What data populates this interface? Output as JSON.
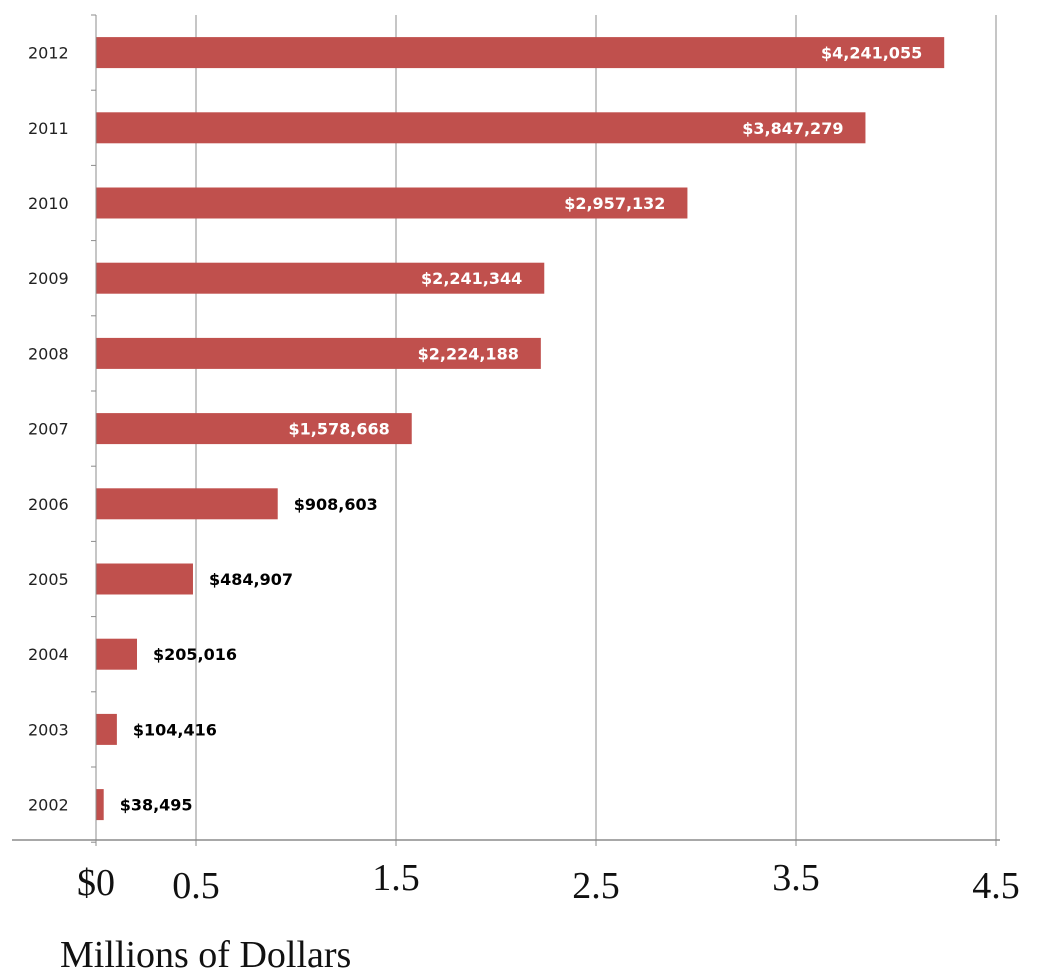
{
  "chart_data": {
    "type": "bar",
    "orientation": "horizontal",
    "categories": [
      "2012",
      "2011",
      "2010",
      "2009",
      "2008",
      "2007",
      "2006",
      "2005",
      "2004",
      "2003",
      "2002"
    ],
    "values": [
      4241055,
      3847279,
      2957132,
      2241344,
      2224188,
      1578668,
      908603,
      484907,
      205016,
      104416,
      38495
    ],
    "data_labels": [
      "$4,241,055",
      "$3,847,279",
      "$2,957,132",
      "$2,241,344",
      "$2,224,188",
      "$1,578,668",
      "$908,603",
      "$484,907",
      "$205,016",
      "$104,416",
      "$38,495"
    ],
    "xlabel": "Millions of Dollars",
    "x_ticks": [
      0,
      0.5,
      1.5,
      2.5,
      3.5,
      4.5
    ],
    "x_tick_labels": [
      "$0",
      "0.5",
      "1.5",
      "2.5",
      "3.5",
      "4.5"
    ],
    "xlim": [
      0,
      4.5
    ],
    "grid": true,
    "bar_color": "#c0504d",
    "label_inside_color": "#ffffff",
    "label_outside_color": "#000000"
  }
}
